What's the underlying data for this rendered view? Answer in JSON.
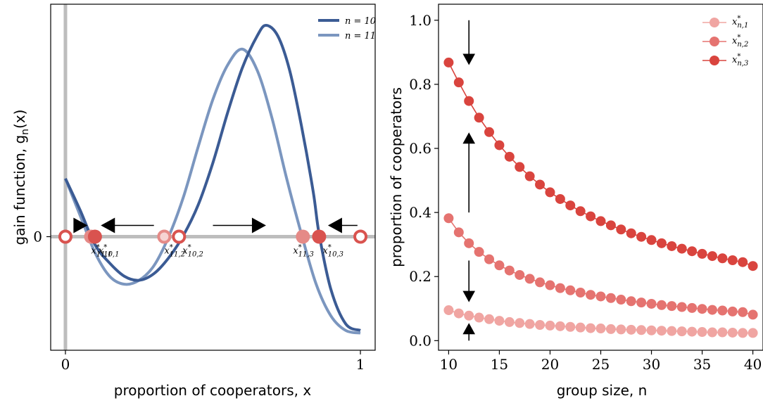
{
  "chart_data": [
    {
      "type": "line",
      "xlabel": "proportion of cooperators, x",
      "ylabel": "gain function, g",
      "ylabel_sub": "n",
      "ylabel_tail": "(x)",
      "xticks": [
        "0",
        "1"
      ],
      "yticks": [
        "0"
      ],
      "xlim": [
        -0.05,
        1.05
      ],
      "ylim": [
        -0.43,
        0.88
      ],
      "series": [
        {
          "name": "n = 10",
          "color": "#3b5b94",
          "points": [
            [
              0.0,
              0.22
            ],
            [
              0.05,
              0.1
            ],
            [
              0.1,
              -0.03
            ],
            [
              0.15,
              -0.1
            ],
            [
              0.2,
              -0.15
            ],
            [
              0.25,
              -0.165
            ],
            [
              0.3,
              -0.14
            ],
            [
              0.35,
              -0.08
            ],
            [
              0.4,
              0.005
            ],
            [
              0.45,
              0.12
            ],
            [
              0.5,
              0.28
            ],
            [
              0.55,
              0.47
            ],
            [
              0.6,
              0.64
            ],
            [
              0.65,
              0.76
            ],
            [
              0.68,
              0.8
            ],
            [
              0.72,
              0.76
            ],
            [
              0.76,
              0.63
            ],
            [
              0.8,
              0.42
            ],
            [
              0.84,
              0.17
            ],
            [
              0.86,
              0.01
            ],
            [
              0.9,
              -0.2
            ],
            [
              0.95,
              -0.33
            ],
            [
              1.0,
              -0.355
            ]
          ]
        },
        {
          "name": "n = 11",
          "color": "#7b96bf",
          "points": [
            [
              0.0,
              0.22
            ],
            [
              0.05,
              0.08
            ],
            [
              0.1,
              -0.06
            ],
            [
              0.15,
              -0.15
            ],
            [
              0.2,
              -0.18
            ],
            [
              0.25,
              -0.165
            ],
            [
              0.3,
              -0.11
            ],
            [
              0.35,
              0.0
            ],
            [
              0.4,
              0.15
            ],
            [
              0.45,
              0.34
            ],
            [
              0.5,
              0.52
            ],
            [
              0.55,
              0.65
            ],
            [
              0.6,
              0.71
            ],
            [
              0.65,
              0.63
            ],
            [
              0.7,
              0.45
            ],
            [
              0.75,
              0.22
            ],
            [
              0.8,
              0.01
            ],
            [
              0.85,
              -0.18
            ],
            [
              0.9,
              -0.3
            ],
            [
              0.95,
              -0.355
            ],
            [
              1.0,
              -0.365
            ]
          ]
        }
      ],
      "legend_position": "top-right",
      "equilibria": [
        {
          "x": 0.0,
          "type": "unstable",
          "label": ""
        },
        {
          "x": 0.087,
          "type": "stable",
          "n": 11,
          "label": "x*11,1"
        },
        {
          "x": 0.1,
          "type": "stable",
          "n": 10,
          "label": "x*10,1"
        },
        {
          "x": 0.335,
          "type": "unstable",
          "n": 11,
          "label": "x*11,2"
        },
        {
          "x": 0.385,
          "type": "unstable",
          "n": 10,
          "label": "x*10,2"
        },
        {
          "x": 0.805,
          "type": "stable",
          "n": 11,
          "label": "x*11,3"
        },
        {
          "x": 0.86,
          "type": "stable",
          "n": 10,
          "label": "x*10,3"
        },
        {
          "x": 1.0,
          "type": "unstable",
          "label": ""
        }
      ],
      "equilibrium_labels": [
        {
          "main": "x",
          "sup": "*",
          "sub": "11,1"
        },
        {
          "main": "x",
          "sup": "*",
          "sub": "10,1"
        },
        {
          "main": "x",
          "sup": "*",
          "sub": "11,2"
        },
        {
          "main": "x",
          "sup": "*",
          "sub": "10,2"
        },
        {
          "main": "x",
          "sup": "*",
          "sub": "11,3"
        },
        {
          "main": "x",
          "sup": "*",
          "sub": "10,3"
        }
      ],
      "flow_arrows": [
        {
          "from": 0.04,
          "to": 0.075
        },
        {
          "from": 0.3,
          "to": 0.12
        },
        {
          "from": 0.5,
          "to": 0.68
        },
        {
          "from": 0.99,
          "to": 0.89
        }
      ],
      "colors": {
        "stable": "#d9534f",
        "stable_faded": "#e58a87",
        "unstable_fill": "#ffffff",
        "unstable_stroke": "#d9534f",
        "axis_line": "#bdbdbd"
      }
    },
    {
      "type": "scatter",
      "xlabel": "group size, n",
      "ylabel": "proportion of cooperators",
      "xticks": [
        10,
        15,
        20,
        25,
        30,
        35,
        40
      ],
      "yticks": [
        "0.0",
        "0.2",
        "0.4",
        "0.6",
        "0.8",
        "1.0"
      ],
      "xlim": [
        9.0,
        41.0
      ],
      "ylim": [
        -0.03,
        1.05
      ],
      "x": [
        10,
        11,
        12,
        13,
        14,
        15,
        16,
        17,
        18,
        19,
        20,
        21,
        22,
        23,
        24,
        25,
        26,
        27,
        28,
        29,
        30,
        31,
        32,
        33,
        34,
        35,
        36,
        37,
        38,
        39,
        40
      ],
      "series": [
        {
          "name": "x*n,1",
          "sup": "*",
          "sub": "n,1",
          "color": "#f0a5a2",
          "values": [
            0.095,
            0.085,
            0.078,
            0.072,
            0.067,
            0.062,
            0.058,
            0.055,
            0.052,
            0.049,
            0.047,
            0.045,
            0.043,
            0.041,
            0.039,
            0.038,
            0.036,
            0.035,
            0.034,
            0.033,
            0.032,
            0.031,
            0.03,
            0.029,
            0.028,
            0.027,
            0.026,
            0.026,
            0.025,
            0.024,
            0.024
          ]
        },
        {
          "name": "x*n,2",
          "sup": "*",
          "sub": "n,2",
          "color": "#e57370",
          "values": [
            0.382,
            0.338,
            0.304,
            0.277,
            0.254,
            0.235,
            0.219,
            0.205,
            0.193,
            0.182,
            0.173,
            0.164,
            0.157,
            0.15,
            0.143,
            0.138,
            0.133,
            0.128,
            0.123,
            0.119,
            0.115,
            0.111,
            0.108,
            0.105,
            0.102,
            0.099,
            0.096,
            0.094,
            0.091,
            0.089,
            0.081
          ]
        },
        {
          "name": "x*n,3",
          "sup": "*",
          "sub": "n,3",
          "color": "#d9443e",
          "values": [
            0.868,
            0.806,
            0.748,
            0.696,
            0.651,
            0.61,
            0.574,
            0.542,
            0.513,
            0.487,
            0.463,
            0.442,
            0.422,
            0.404,
            0.388,
            0.373,
            0.36,
            0.347,
            0.335,
            0.324,
            0.314,
            0.304,
            0.295,
            0.287,
            0.279,
            0.271,
            0.264,
            0.257,
            0.251,
            0.245,
            0.233
          ]
        }
      ],
      "legend_position": "top-right",
      "arrows": [
        {
          "x": 12,
          "from": 1.0,
          "to": 0.86
        },
        {
          "x": 12,
          "from": 0.4,
          "to": 0.65
        },
        {
          "x": 12,
          "from": 0.25,
          "to": 0.12
        },
        {
          "x": 12,
          "from": -0.0,
          "to": 0.055
        }
      ]
    }
  ]
}
